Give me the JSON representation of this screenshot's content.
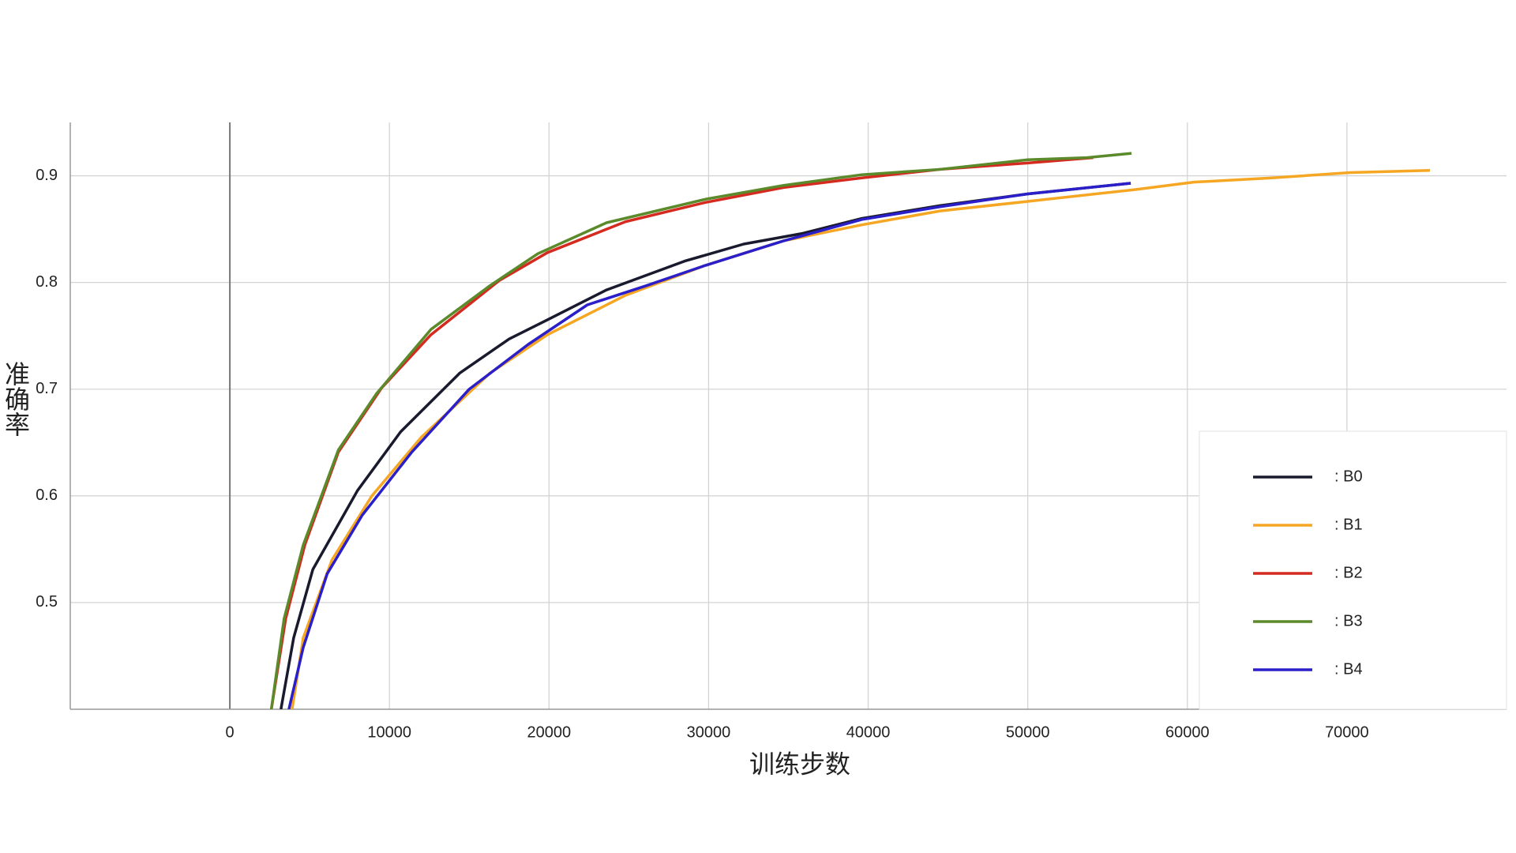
{
  "chart_data": {
    "type": "line",
    "xlabel": "训练步数",
    "ylabel": "准确率",
    "xlim": [
      -10000,
      80000
    ],
    "ylim": [
      0.4,
      0.95
    ],
    "xticks": [
      0,
      10000,
      20000,
      30000,
      40000,
      50000,
      60000,
      70000
    ],
    "yticks": [
      0.5,
      0.6,
      0.7,
      0.8,
      0.9
    ],
    "grid": true,
    "legend": "lower right",
    "series": [
      {
        "name": ": B0",
        "color": "#1a1a2e",
        "x": [
          3200,
          4000,
          5200,
          8000,
          10700,
          14400,
          17500,
          19900,
          23600,
          28500,
          32200,
          35900,
          39600,
          44500,
          50000,
          56450
        ],
        "values": [
          0.4,
          0.467,
          0.531,
          0.605,
          0.66,
          0.715,
          0.747,
          0.765,
          0.793,
          0.82,
          0.836,
          0.846,
          0.86,
          0.872,
          0.883,
          0.893
        ]
      },
      {
        "name": ": B1",
        "color": "#f5a623",
        "x": [
          3900,
          4600,
          6400,
          8900,
          12000,
          16300,
          19900,
          24800,
          29800,
          34700,
          39600,
          44500,
          50000,
          56700,
          60400,
          65300,
          70200,
          75200
        ],
        "values": [
          0.4,
          0.467,
          0.54,
          0.6,
          0.655,
          0.715,
          0.751,
          0.788,
          0.816,
          0.839,
          0.854,
          0.867,
          0.876,
          0.887,
          0.894,
          0.898,
          0.903,
          0.905
        ]
      },
      {
        "name": ": B2",
        "color": "#d42a1f",
        "x": [
          2600,
          3500,
          4700,
          6800,
          9500,
          12600,
          16900,
          19900,
          24800,
          29800,
          34700,
          39600,
          44500,
          50000,
          54100
        ],
        "values": [
          0.4,
          0.485,
          0.554,
          0.641,
          0.701,
          0.751,
          0.802,
          0.828,
          0.857,
          0.875,
          0.889,
          0.898,
          0.906,
          0.912,
          0.917
        ]
      },
      {
        "name": ": B3",
        "color": "#5a8a2a",
        "x": [
          2600,
          3400,
          4600,
          6800,
          9200,
          12600,
          16300,
          19300,
          23600,
          29800,
          34700,
          39600,
          44500,
          50000,
          53700,
          56500
        ],
        "values": [
          0.4,
          0.485,
          0.554,
          0.643,
          0.696,
          0.756,
          0.797,
          0.827,
          0.856,
          0.878,
          0.891,
          0.901,
          0.906,
          0.915,
          0.917,
          0.921
        ]
      },
      {
        "name": ": B4",
        "color": "#2a1fc8",
        "x": [
          3700,
          4600,
          6100,
          8300,
          11400,
          15000,
          18700,
          22400,
          26100,
          29800,
          34700,
          39600,
          44500,
          50000,
          56450
        ],
        "values": [
          0.4,
          0.458,
          0.527,
          0.582,
          0.641,
          0.7,
          0.742,
          0.779,
          0.797,
          0.816,
          0.839,
          0.859,
          0.871,
          0.883,
          0.893
        ]
      }
    ]
  }
}
